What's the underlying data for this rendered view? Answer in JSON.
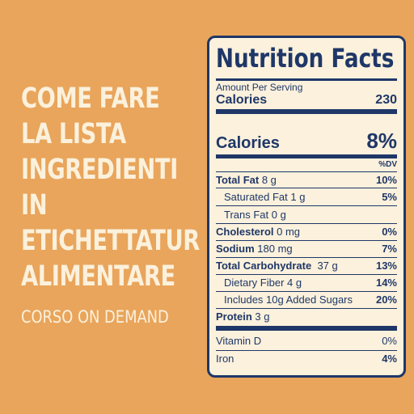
{
  "headline": {
    "line1": "COME FARE",
    "line2": "LA LISTA",
    "line3": "INGREDIENTI",
    "line4": "IN",
    "line5": "ETICHETTATUR",
    "line6": "ALIMENTARE"
  },
  "subtitle": "CORSO ON DEMAND",
  "label": {
    "title": "Nutrition Facts",
    "amount_per_serving": "Amount Per Serving",
    "calories_label": "Calories",
    "calories_value": "230",
    "calories2_label": "Calories",
    "calories2_value": "8%",
    "dv_header": "%DV",
    "rows": [
      {
        "label": "Total Fat",
        "amount": "8 g",
        "dv": "10%"
      },
      {
        "label": "Saturated Fat",
        "amount": "1 g",
        "dv": "5%"
      },
      {
        "label": "Trans Fat",
        "amount": "0 g",
        "dv": ""
      },
      {
        "label": "Cholesterol",
        "amount": "0 mg",
        "dv": "0%"
      },
      {
        "label": "Sodium",
        "amount": "180 mg",
        "dv": "7%"
      },
      {
        "label": "Total Carbohydrate",
        "amount": "37 g",
        "dv": "13%"
      },
      {
        "label": "Dietary Fiber",
        "amount": "4 g",
        "dv": "14%"
      },
      {
        "label": "Includes 10g Added Sugars",
        "amount": "",
        "dv": "20%"
      },
      {
        "label": "Protein",
        "amount": "3 g",
        "dv": ""
      },
      {
        "label": "Vitamin D",
        "amount": "",
        "dv": "0%"
      },
      {
        "label": "Iron",
        "amount": "",
        "dv": "4%"
      }
    ]
  },
  "colors": {
    "background": "#e9a55c",
    "headline_text": "#fbf1dc",
    "label_background": "#fbf1dc",
    "label_ink": "#1f3768"
  }
}
